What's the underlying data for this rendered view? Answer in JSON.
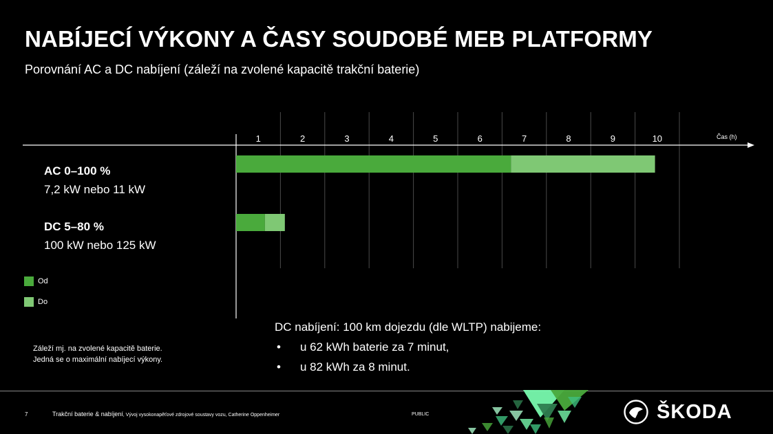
{
  "slide": {
    "title": "NABÍJECÍ VÝKONY A ČASY SOUDOBÉ MEB PLATFORMY",
    "subtitle": "Porovnání AC a DC nabíjení (záleží na zvolené  kapacitě trakční baterie)"
  },
  "chart_data": {
    "type": "bar",
    "orientation": "horizontal",
    "stacked": true,
    "x_axis": {
      "label": "Čas (h)",
      "ticks": [
        "1",
        "2",
        "3",
        "4",
        "5",
        "6",
        "7",
        "8",
        "9",
        "10"
      ],
      "xlim": [
        0,
        10
      ],
      "grid": true
    },
    "categories": [
      "AC 0–100 %",
      "DC 5–80 %"
    ],
    "category_sublabels": [
      "7,2 kW nebo 11 kW",
      "100 kW nebo 125 kW"
    ],
    "series": [
      {
        "name": "Od",
        "values": [
          6.2,
          0.65
        ],
        "color": "#4aaa3c"
      },
      {
        "name": "Do",
        "values": [
          3.25,
          0.45
        ],
        "color": "#7fc874"
      }
    ],
    "legend_position": "bottom-left"
  },
  "note": {
    "line1": "Záleží mj. na zvolené kapacitě baterie.",
    "line2": "Jedná se o maximální nabíjecí výkony."
  },
  "dc_info": {
    "heading": "DC nabíjení: 100 km dojezdu (dle WLTP) nabijeme:",
    "items": [
      "u 62 kWh baterie za 7 minut,",
      "u 82 kWh za 8 minut."
    ]
  },
  "footer": {
    "page_number": "7",
    "title": "Trakční baterie & nabíjení",
    "detail": ", Vývoj vysokonapěťové zdrojové soustavy vozu, Catherine Oppenheimer",
    "classification": "PUBLIC"
  },
  "brand": {
    "name": "ŠKODA",
    "icon": "skoda-logo-icon"
  },
  "colors": {
    "background": "#000000",
    "bar_from": "#4aaa3c",
    "bar_to": "#7fc874",
    "accent": "#78faae"
  }
}
